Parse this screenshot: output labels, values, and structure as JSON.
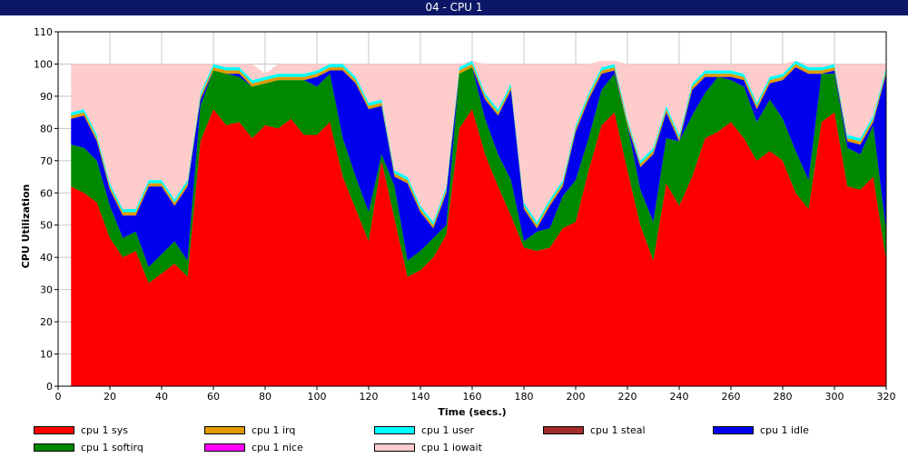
{
  "window": {
    "title": "04 - CPU 1"
  },
  "chart_data": {
    "type": "area",
    "stacked": true,
    "xlabel": "Time (secs.)",
    "ylabel": "CPU Utilization",
    "xlim": [
      0,
      320
    ],
    "ylim": [
      0,
      110
    ],
    "xticks": [
      0,
      20,
      40,
      60,
      80,
      100,
      120,
      140,
      160,
      180,
      200,
      220,
      240,
      260,
      280,
      300,
      320
    ],
    "yticks": [
      0,
      10,
      20,
      30,
      40,
      50,
      60,
      70,
      80,
      90,
      100,
      110
    ],
    "grid": true,
    "legend_position": "bottom",
    "x": [
      5,
      10,
      15,
      20,
      25,
      30,
      35,
      40,
      45,
      50,
      55,
      60,
      65,
      70,
      75,
      80,
      85,
      90,
      95,
      100,
      105,
      110,
      115,
      120,
      125,
      130,
      135,
      140,
      145,
      150,
      155,
      160,
      165,
      170,
      175,
      180,
      185,
      190,
      195,
      200,
      205,
      210,
      215,
      220,
      225,
      230,
      235,
      240,
      245,
      250,
      255,
      260,
      265,
      270,
      275,
      280,
      285,
      290,
      295,
      300,
      305,
      310,
      315,
      320
    ],
    "series": [
      {
        "name": "cpu 1 sys",
        "color": "#ff0000",
        "values": [
          62,
          60,
          57,
          46,
          40,
          42,
          32,
          35,
          38,
          34,
          76,
          86,
          81,
          82,
          77,
          81,
          80,
          83,
          78,
          78,
          82,
          65,
          55,
          45,
          70,
          52,
          34,
          36,
          40,
          47,
          80,
          86,
          72,
          62,
          53,
          43,
          42,
          43,
          49,
          51,
          67,
          81,
          85,
          67,
          50,
          39,
          63,
          56,
          65,
          77,
          79,
          82,
          77,
          70,
          73,
          70,
          60,
          55,
          82,
          85,
          62,
          61,
          65,
          39
        ]
      },
      {
        "name": "cpu 1 softirq",
        "color": "#008800",
        "values": [
          13,
          14,
          13,
          10,
          6,
          6,
          5,
          6,
          7,
          5,
          11,
          12,
          16,
          14,
          16,
          13,
          15,
          12,
          17,
          15,
          15,
          12,
          10,
          9,
          2,
          10,
          5,
          6,
          6,
          3,
          17,
          13,
          11,
          10,
          11,
          2,
          6,
          6,
          10,
          13,
          10,
          11,
          12,
          14,
          11,
          12,
          14,
          20,
          19,
          14,
          17,
          13,
          16,
          12,
          16,
          13,
          13,
          9,
          15,
          12,
          12,
          11,
          16,
          9
        ]
      },
      {
        "name": "cpu 1 idle",
        "color": "#0000ee",
        "values": [
          8,
          10,
          6,
          5,
          7,
          5,
          25,
          21,
          11,
          23,
          2,
          0,
          0,
          1,
          0,
          0,
          0,
          0,
          0,
          3,
          1,
          21,
          29,
          32,
          15,
          3,
          24,
          12,
          3,
          10,
          0,
          0,
          6,
          12,
          28,
          10,
          1,
          7,
          3,
          15,
          12,
          5,
          1,
          0,
          7,
          21,
          8,
          0,
          8,
          5,
          0,
          1,
          2,
          4,
          5,
          12,
          26,
          33,
          0,
          1,
          2,
          3,
          1,
          49
        ]
      },
      {
        "name": "cpu 1 nice",
        "color": "#ff00ff",
        "values": [
          0,
          0,
          0,
          0,
          0,
          0,
          0,
          0,
          0,
          0,
          0,
          0,
          0,
          0,
          0,
          0,
          0,
          0,
          0,
          0,
          0,
          0,
          0,
          0,
          0,
          0,
          0,
          0,
          0,
          0,
          0,
          0,
          0,
          0,
          0,
          0,
          0,
          0,
          0,
          0,
          0,
          0,
          0,
          0,
          0,
          0,
          0,
          0,
          0,
          0,
          0,
          0,
          0,
          0,
          0,
          0,
          0,
          0,
          0,
          0,
          0,
          0,
          0,
          0
        ]
      },
      {
        "name": "cpu 1 irq",
        "color": "#e29a00",
        "values": [
          1,
          1,
          1,
          1,
          1,
          1,
          1,
          1,
          1,
          1,
          1,
          1,
          1,
          1,
          1,
          1,
          1,
          1,
          1,
          1,
          1,
          1,
          1,
          1,
          1,
          1,
          1,
          1,
          1,
          1,
          1,
          1,
          1,
          1,
          1,
          1,
          1,
          1,
          1,
          1,
          1,
          1,
          1,
          1,
          1,
          1,
          1,
          1,
          1,
          1,
          1,
          1,
          1,
          1,
          1,
          1,
          1,
          1,
          1,
          1,
          1,
          1,
          1,
          1
        ]
      },
      {
        "name": "cpu 1 steal",
        "color": "#a52a2a",
        "values": [
          0,
          0,
          0,
          0,
          0,
          0,
          0,
          0,
          0,
          0,
          0,
          0,
          0,
          0,
          0,
          0,
          0,
          0,
          0,
          0,
          0,
          0,
          0,
          0,
          0,
          0,
          0,
          0,
          0,
          0,
          0,
          0,
          0,
          0,
          0,
          0,
          0,
          0,
          0,
          0,
          0,
          0,
          0,
          0,
          0,
          0,
          0,
          0,
          0,
          0,
          0,
          0,
          0,
          0,
          0,
          0,
          0,
          0,
          0,
          0,
          0,
          0,
          0,
          0
        ]
      },
      {
        "name": "cpu 1 user",
        "color": "#00ffff",
        "values": [
          1,
          1,
          1,
          1,
          1,
          1,
          1,
          1,
          1,
          1,
          1,
          1,
          1,
          1,
          1,
          1,
          1,
          1,
          1,
          1,
          1,
          1,
          1,
          1,
          1,
          1,
          1,
          1,
          1,
          1,
          1,
          1,
          1,
          1,
          1,
          1,
          1,
          1,
          1,
          1,
          1,
          1,
          1,
          1,
          1,
          1,
          1,
          1,
          1,
          1,
          1,
          1,
          1,
          1,
          1,
          1,
          1,
          1,
          1,
          1,
          1,
          1,
          1,
          1
        ]
      },
      {
        "name": "cpu 1 iowait",
        "color": "#ffcccc",
        "values": [
          15,
          14,
          22,
          37,
          45,
          45,
          36,
          36,
          42,
          36,
          9,
          0,
          1,
          1,
          5,
          1,
          3,
          3,
          3,
          2,
          0,
          0,
          4,
          12,
          11,
          33,
          35,
          44,
          49,
          38,
          1,
          0,
          9,
          14,
          6,
          43,
          49,
          42,
          36,
          19,
          9,
          2,
          1,
          17,
          30,
          26,
          13,
          22,
          6,
          2,
          2,
          2,
          3,
          12,
          4,
          3,
          0,
          1,
          1,
          0,
          22,
          23,
          16,
          1
        ]
      }
    ]
  },
  "legend_order": [
    0,
    4,
    6,
    5,
    2,
    1,
    3,
    7
  ]
}
